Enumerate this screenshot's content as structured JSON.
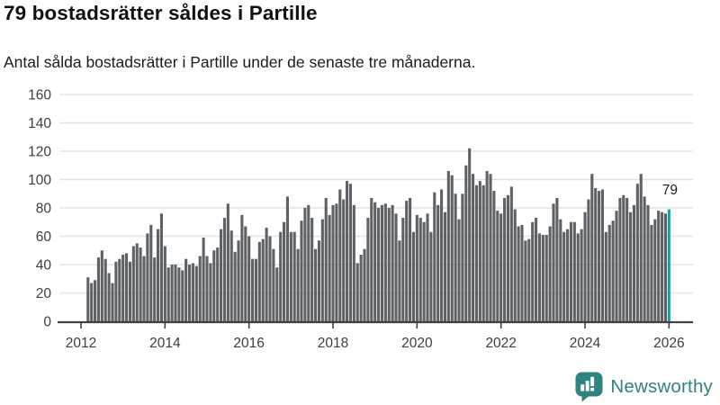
{
  "header": {
    "title": "79 bostadsrätter såldes i Partille",
    "subtitle": "Antal sålda bostadsrätter i Partille under de senaste tre månaderna."
  },
  "chart_data": {
    "type": "bar",
    "title": "79 bostadsrätter såldes i Partille",
    "subtitle": "Antal sålda bostadsrätter i Partille under de senaste tre månaderna.",
    "x_start_month": "2012-03",
    "x_end_month": "2026-01",
    "x_tick_labels": [
      "2012",
      "2014",
      "2016",
      "2018",
      "2020",
      "2022",
      "2024",
      "2026"
    ],
    "y_ticks": [
      0,
      20,
      40,
      60,
      80,
      100,
      120,
      140,
      160
    ],
    "ylim": [
      0,
      160
    ],
    "grid": true,
    "bar_color": "#5e6267",
    "highlight_color": "#11a3a3",
    "values": [
      31,
      27,
      29,
      45,
      50,
      44,
      34,
      27,
      42,
      44,
      47,
      48,
      42,
      53,
      55,
      52,
      46,
      62,
      68,
      45,
      65,
      76,
      53,
      38,
      40,
      40,
      38,
      36,
      44,
      40,
      41,
      39,
      46,
      59,
      46,
      41,
      50,
      52,
      65,
      73,
      83,
      64,
      49,
      57,
      75,
      67,
      60,
      44,
      44,
      56,
      58,
      66,
      60,
      51,
      38,
      63,
      70,
      88,
      63,
      63,
      51,
      71,
      80,
      82,
      73,
      51,
      57,
      72,
      87,
      75,
      82,
      83,
      93,
      86,
      99,
      97,
      82,
      41,
      47,
      51,
      73,
      87,
      84,
      80,
      82,
      83,
      80,
      82,
      76,
      57,
      73,
      85,
      87,
      63,
      75,
      73,
      70,
      76,
      63,
      91,
      82,
      93,
      77,
      106,
      103,
      90,
      72,
      90,
      110,
      122,
      104,
      96,
      99,
      96,
      106,
      104,
      92,
      78,
      76,
      87,
      89,
      95,
      79,
      67,
      68,
      57,
      58,
      70,
      73,
      62,
      61,
      61,
      67,
      83,
      87,
      72,
      63,
      65,
      70,
      70,
      62,
      65,
      77,
      86,
      104,
      94,
      92,
      93,
      63,
      68,
      71,
      78,
      87,
      89,
      87,
      77,
      82,
      97,
      104,
      88,
      82,
      68,
      72,
      78,
      77,
      76,
      79
    ],
    "highlight": {
      "index": 166,
      "value": 79,
      "label": "79"
    },
    "annotation": {
      "text": "79"
    }
  },
  "footer": {
    "brand": "Newsworthy",
    "brand_color": "#2f8380"
  },
  "colors": {
    "axis": "#414141",
    "gridline": "#e3e3e3",
    "tick_label": "#3d3d3d",
    "annotation": "#222222"
  }
}
